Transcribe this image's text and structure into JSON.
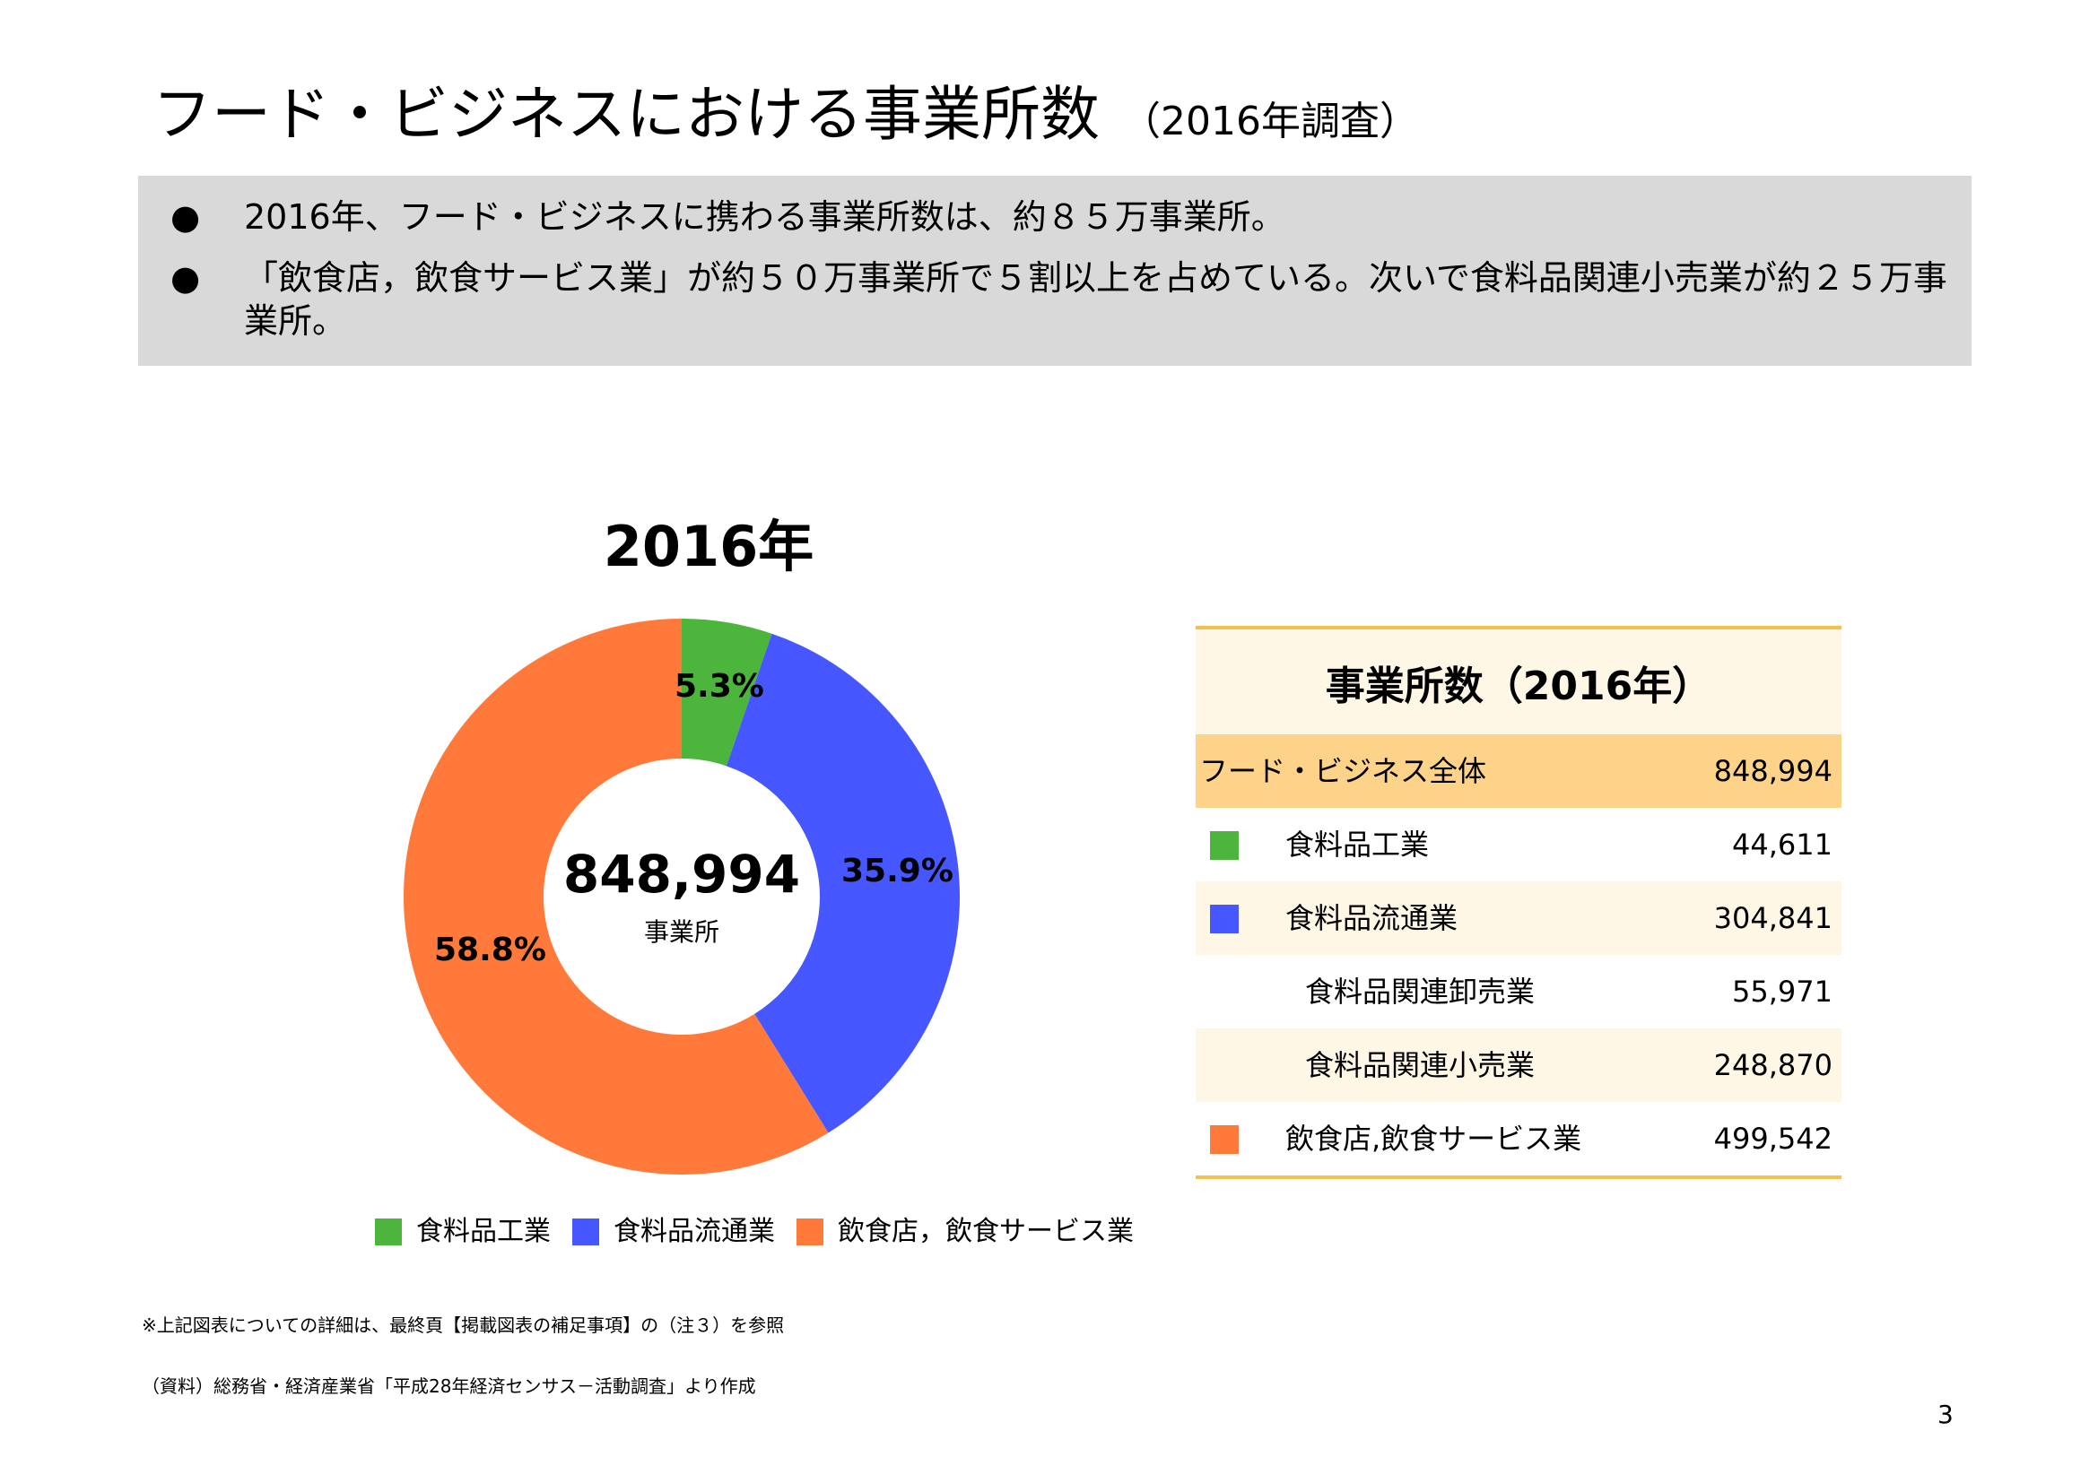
{
  "title": {
    "main": "フード・ビジネスにおける事業所数",
    "sub": "（2016年調査）"
  },
  "summary": {
    "bullet_symbol": "●",
    "bullets": [
      "2016年、フード・ビジネスに携わる事業所数は、約８５万事業所。",
      "「飲食店，飲食サービス業」が約５０万事業所で５割以上を占めている。次いで食料品関連小売業が約２５万事業所。"
    ]
  },
  "chart_data": {
    "type": "pie",
    "title": "2016年",
    "donut": true,
    "center_value": "848,994",
    "center_unit": "事業所",
    "start": "top",
    "direction": "clockwise",
    "slices": [
      {
        "name": "食料品工業",
        "value": 44611,
        "percent_label": "5.3%",
        "color": "#4cb63c"
      },
      {
        "name": "食料品流通業",
        "value": 304841,
        "percent_label": "35.9%",
        "color": "#4657ff"
      },
      {
        "name": "飲食店，飲食サービス業",
        "value": 499542,
        "percent_label": "58.8%",
        "color": "#ff7a3a"
      }
    ],
    "legend_position": "bottom"
  },
  "table": {
    "header": "事業所数（2016年）",
    "rows": [
      {
        "label": "フード・ビジネス全体",
        "value": "848,994",
        "bg": "#fdd38a"
      },
      {
        "label": "食料品工業",
        "value": "44,611",
        "swatch": "#4cb63c",
        "bg": "#ffffff"
      },
      {
        "label": "食料品流通業",
        "value": "304,841",
        "swatch": "#4657ff",
        "bg": "#fff7e6"
      },
      {
        "label": "食料品関連卸売業",
        "value": "55,971",
        "indent": true,
        "bg": "#ffffff"
      },
      {
        "label": "食料品関連小売業",
        "value": "248,870",
        "indent": true,
        "bg": "#fff7e6"
      },
      {
        "label": "飲食店,飲食サービス業",
        "value": "499,542",
        "swatch": "#ff7a3a",
        "bg": "#ffffff"
      }
    ]
  },
  "footnotes": {
    "note": "※上記図表についての詳細は、最終頁【掲載図表の補足事項】の（注３）を参照",
    "source": "（資料）総務省・経済産業省「平成28年経済センサス－活動調査」より作成"
  },
  "page_number": "3"
}
